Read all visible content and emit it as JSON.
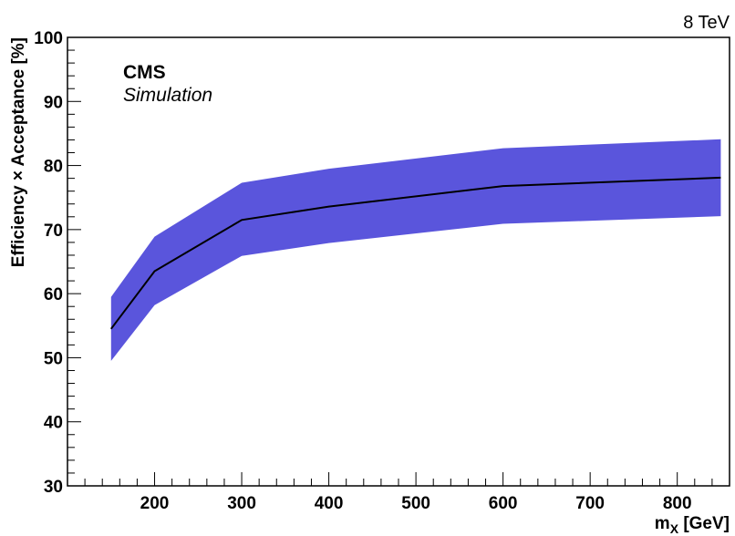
{
  "energy_label": "8 TeV",
  "experiment_label": "CMS",
  "simulation_label": "Simulation",
  "chart_data": {
    "type": "line",
    "xlabel_main": "m",
    "xlabel_sub": "X",
    "xlabel_unit": " [GeV]",
    "ylabel": "Efficiency × Acceptance [%]",
    "xlim": [
      100,
      860
    ],
    "ylim": [
      30,
      100
    ],
    "x_ticks": [
      200,
      300,
      400,
      500,
      600,
      700,
      800
    ],
    "y_ticks": [
      30,
      40,
      50,
      60,
      70,
      80,
      90,
      100
    ],
    "grid": false,
    "series": [
      {
        "x": [
          150,
          200,
          300,
          400,
          600,
          850
        ],
        "y": [
          54.5,
          63.5,
          71.5,
          73.6,
          76.8,
          78.1
        ],
        "band_upper": [
          59.5,
          68.9,
          77.3,
          79.5,
          82.7,
          84.1
        ],
        "band_lower": [
          49.5,
          58.2,
          65.9,
          67.9,
          70.9,
          72.1
        ],
        "line_color": "#000000",
        "band_color": "#5a55dc"
      }
    ]
  }
}
